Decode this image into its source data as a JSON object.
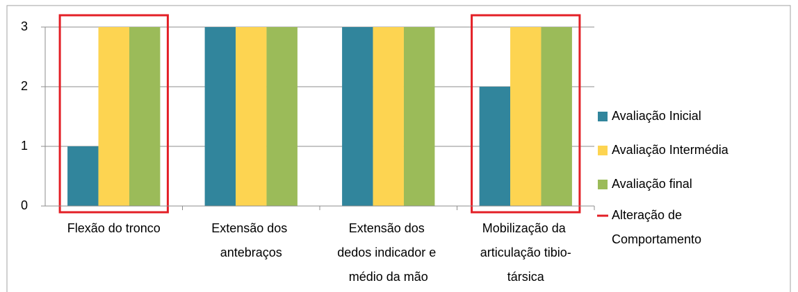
{
  "chart_data": {
    "type": "bar",
    "categories": [
      "Flexão do tronco",
      "Extensão dos antebraços",
      "Extensão dos dedos indicador e médio da mão",
      "Mobilização da articulação tibio-társica"
    ],
    "series": [
      {
        "name": "Avaliação Inicial",
        "color": "#31859c",
        "values": [
          1,
          3,
          3,
          2
        ]
      },
      {
        "name": "Avaliação Intermédia",
        "color": "#fdd451",
        "values": [
          3,
          3,
          3,
          3
        ]
      },
      {
        "name": "Avaliação final",
        "color": "#9bbb59",
        "values": [
          3,
          3,
          3,
          3
        ]
      }
    ],
    "highlight": {
      "name": "Alteração de Comportamento",
      "color": "#e31f26",
      "categories": [
        "Flexão do tronco",
        "Mobilização da articulação tibio-társica"
      ]
    },
    "ylim": [
      0,
      3
    ],
    "yticks": [
      0,
      1,
      2,
      3
    ],
    "grid": true,
    "legend": "right"
  }
}
